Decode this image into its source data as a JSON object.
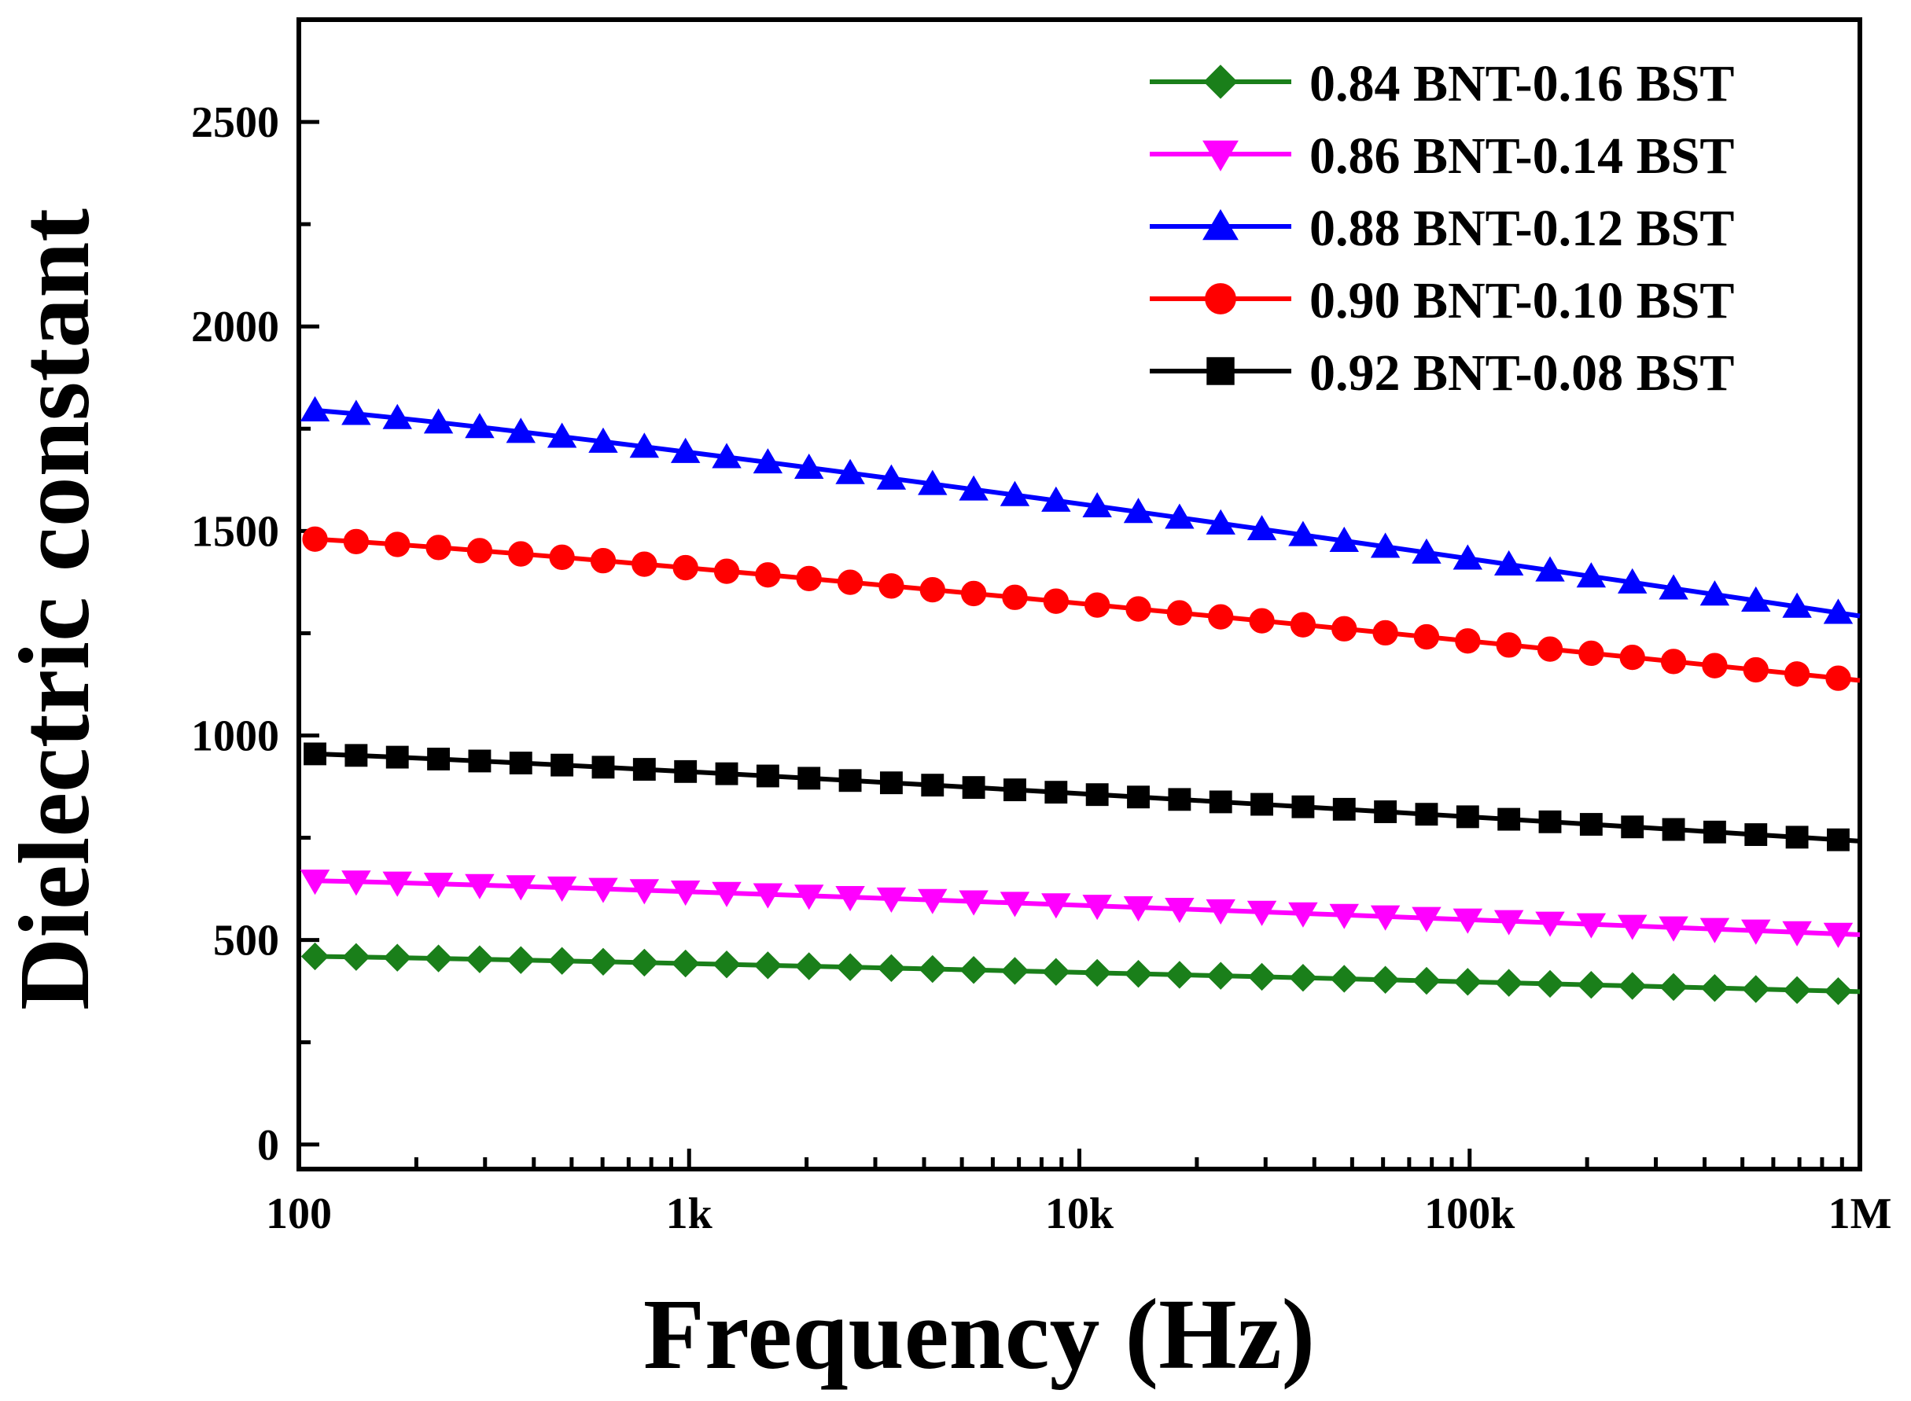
{
  "chart_data": {
    "type": "line",
    "xscale": "log",
    "xlabel": "Frequency (Hz)",
    "ylabel": "Dielectric constant",
    "xlim": [
      100,
      1000000
    ],
    "ylim": [
      -60,
      2750
    ],
    "x_ticks": [
      {
        "value": 100,
        "label": "100"
      },
      {
        "value": 1000,
        "label": "1k"
      },
      {
        "value": 10000,
        "label": "10k"
      },
      {
        "value": 100000,
        "label": "100k"
      },
      {
        "value": 1000000,
        "label": "1M"
      }
    ],
    "y_ticks": [
      {
        "value": 0,
        "label": "0"
      },
      {
        "value": 500,
        "label": "500"
      },
      {
        "value": 1000,
        "label": "1000"
      },
      {
        "value": 1500,
        "label": "1500"
      },
      {
        "value": 2000,
        "label": "2000"
      },
      {
        "value": 2500,
        "label": "2500"
      }
    ],
    "legend_position": "top-right",
    "points_per_series": 38,
    "series": [
      {
        "name": "0.84 BNT-0.16 BST",
        "color": "#1a7f1a",
        "marker": "diamond",
        "start": 460,
        "end": 375
      },
      {
        "name": "0.86 BNT-0.14 BST",
        "color": "#ff00ff",
        "marker": "triangle-down",
        "start": 645,
        "end": 515
      },
      {
        "name": "0.88 BNT-0.12 BST",
        "color": "#0000ff",
        "marker": "triangle-up",
        "start": 1795,
        "end": 1300
      },
      {
        "name": "0.90 BNT-0.10 BST",
        "color": "#ff0000",
        "marker": "circle",
        "start": 1480,
        "end": 1140
      },
      {
        "name": "0.92 BNT-0.08 BST",
        "color": "#000000",
        "marker": "square",
        "start": 955,
        "end": 745
      }
    ]
  }
}
